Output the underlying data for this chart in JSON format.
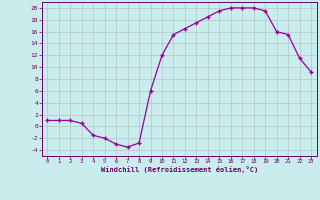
{
  "x": [
    0,
    1,
    2,
    3,
    4,
    5,
    6,
    7,
    8,
    9,
    10,
    11,
    12,
    13,
    14,
    15,
    16,
    17,
    18,
    19,
    20,
    21,
    22,
    23
  ],
  "y": [
    1,
    1,
    1,
    0.5,
    -1.5,
    -2,
    -3,
    -3.5,
    -2.8,
    6,
    12,
    15.5,
    16.5,
    17.5,
    18.5,
    19.5,
    20,
    20,
    20,
    19.5,
    16,
    15.5,
    11.5,
    9.2
  ],
  "line_color": "#990099",
  "marker_color": "#990099",
  "bg_color": "#cbecec",
  "grid_color": "#b0c8c8",
  "xlabel": "Windchill (Refroidissement éolien,°C)",
  "ylim": [
    -5,
    21
  ],
  "xlim": [
    -0.5,
    23.5
  ],
  "yticks": [
    -4,
    -2,
    0,
    2,
    4,
    6,
    8,
    10,
    12,
    14,
    16,
    18,
    20
  ],
  "xticks": [
    0,
    1,
    2,
    3,
    4,
    5,
    6,
    7,
    8,
    9,
    10,
    11,
    12,
    13,
    14,
    15,
    16,
    17,
    18,
    19,
    20,
    21,
    22,
    23
  ],
  "label_color": "#660066",
  "axis_color": "#660066",
  "tick_color": "#660066"
}
